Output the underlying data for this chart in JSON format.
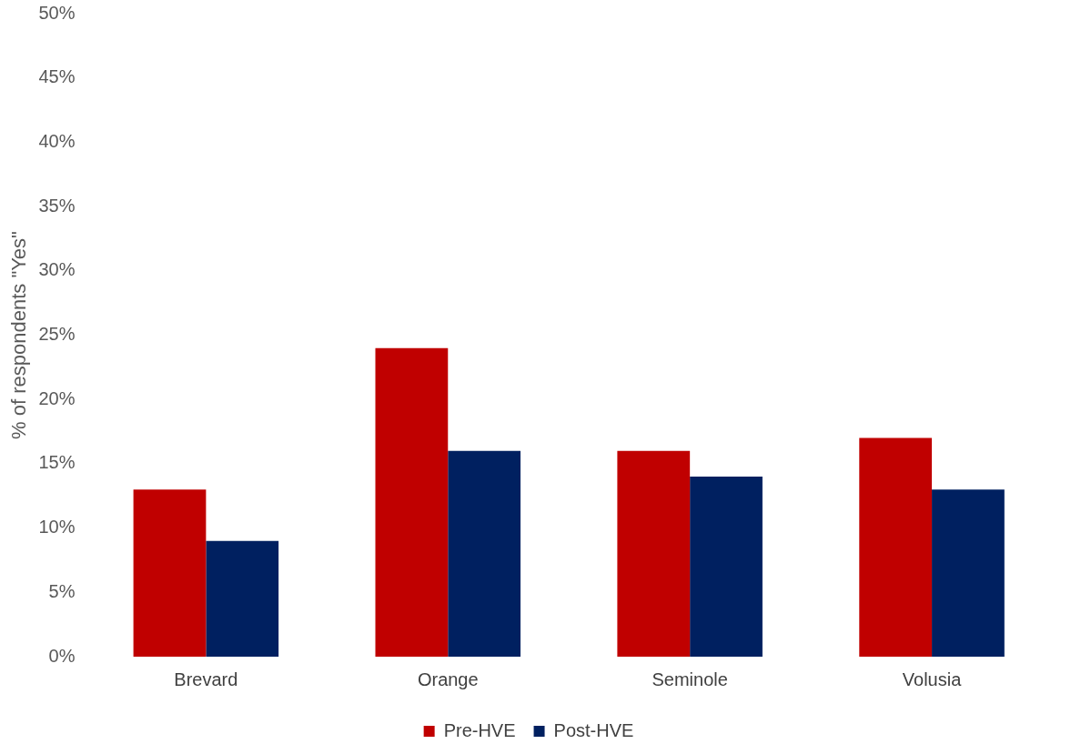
{
  "chart_data": {
    "type": "bar",
    "ylabel": "% of respondents \"Yes\"",
    "categories": [
      "Brevard",
      "Orange",
      "Seminole",
      "Volusia"
    ],
    "series": [
      {
        "name": "Pre-HVE",
        "color": "#c00000",
        "values": [
          13,
          24,
          16,
          17
        ]
      },
      {
        "name": "Post-HVE",
        "color": "#002060",
        "values": [
          9,
          16,
          14,
          13
        ]
      }
    ],
    "ylim": [
      0,
      50
    ],
    "yticks": [
      {
        "value": 0,
        "label": "0%"
      },
      {
        "value": 5,
        "label": "5%"
      },
      {
        "value": 10,
        "label": "10%"
      },
      {
        "value": 15,
        "label": "15%"
      },
      {
        "value": 20,
        "label": "20%"
      },
      {
        "value": 25,
        "label": "25%"
      },
      {
        "value": 30,
        "label": "30%"
      },
      {
        "value": 35,
        "label": "35%"
      },
      {
        "value": 40,
        "label": "40%"
      },
      {
        "value": 45,
        "label": "45%"
      },
      {
        "value": 50,
        "label": "50%"
      }
    ],
    "grid": false,
    "legend": "bottom"
  }
}
